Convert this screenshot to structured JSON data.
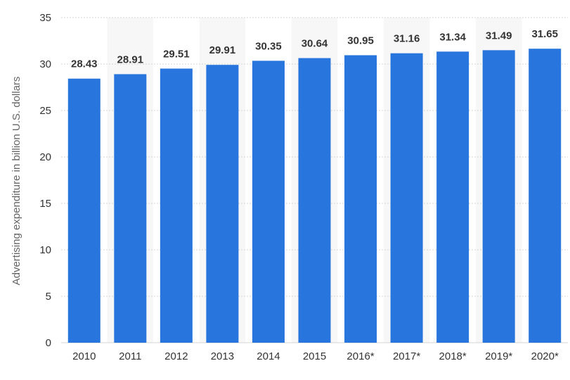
{
  "chart_data": {
    "type": "bar",
    "categories": [
      "2010",
      "2011",
      "2012",
      "2013",
      "2014",
      "2015",
      "2016*",
      "2017*",
      "2018*",
      "2019*",
      "2020*"
    ],
    "values": [
      28.43,
      28.91,
      29.51,
      29.91,
      30.35,
      30.64,
      30.95,
      31.16,
      31.34,
      31.49,
      31.65
    ],
    "data_labels": [
      "28.43",
      "28.91",
      "29.51",
      "29.91",
      "30.35",
      "30.64",
      "30.95",
      "31.16",
      "31.34",
      "31.49",
      "31.65"
    ],
    "ylabel": "Advertising expenditure in billion U.S. dollars",
    "ylim": [
      0,
      35
    ],
    "yticks": [
      "0",
      "5",
      "10",
      "15",
      "20",
      "25",
      "30",
      "35"
    ],
    "grid": true,
    "bar_color": "#2876dd",
    "band_color": "#f7f7f8",
    "grid_color": "#d6d6d6"
  }
}
